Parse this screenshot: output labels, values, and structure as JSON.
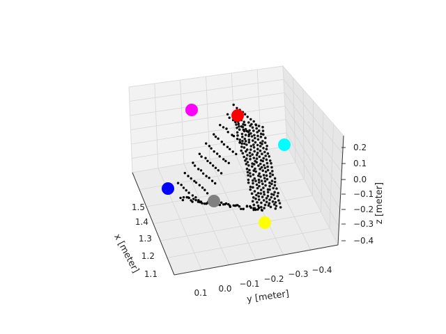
{
  "chart_data": {
    "type": "scatter",
    "projection": "3d",
    "xlabel": "x [meter]",
    "ylabel": "y [meter]",
    "zlabel": "z [meter]",
    "x_ticks": [
      "1.1",
      "1.2",
      "1.3",
      "1.4",
      "1.5"
    ],
    "y_ticks": [
      "0.1",
      "0.0",
      "−0.1",
      "−0.2",
      "−0.3",
      "−0.4"
    ],
    "z_ticks": [
      "0.2",
      "0.1",
      "0.0",
      "−0.1",
      "−0.2",
      "−0.3",
      "−0.4"
    ],
    "xlim": [
      1.05,
      1.55
    ],
    "ylim": [
      -0.45,
      0.15
    ],
    "zlim": [
      -0.45,
      0.25
    ],
    "grid": true,
    "point_cloud_color": "#000000",
    "markers": [
      {
        "color": "#ff00ff",
        "x": 1.5,
        "y": -0.05,
        "z": 0.15
      },
      {
        "color": "#ff0000",
        "x": 1.4,
        "y": -0.2,
        "z": 0.1
      },
      {
        "color": "#00ffff",
        "x": 1.3,
        "y": -0.42,
        "z": 0.05
      },
      {
        "color": "#0000ff",
        "x": 1.45,
        "y": 0.08,
        "z": -0.2
      },
      {
        "color": "#808080",
        "x": 1.35,
        "y": -0.05,
        "z": -0.25
      },
      {
        "color": "#ffff00",
        "x": 1.15,
        "y": -0.28,
        "z": -0.35
      }
    ]
  }
}
